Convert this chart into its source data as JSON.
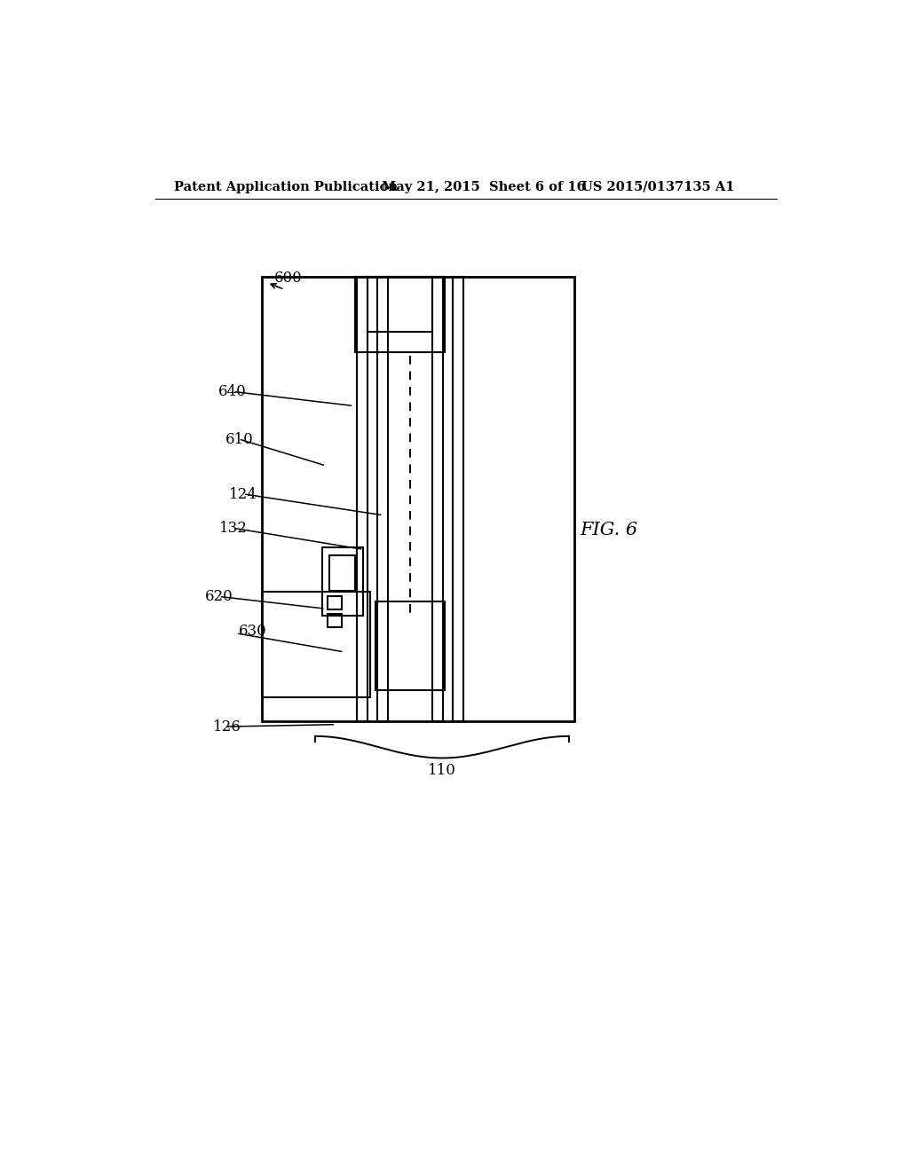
{
  "background_color": "#ffffff",
  "header_left": "Patent Application Publication",
  "header_mid": "May 21, 2015  Sheet 6 of 16",
  "header_right": "US 2015/0137135 A1",
  "fig_label": "FIG. 6",
  "label_600": "600",
  "label_640": "640",
  "label_610": "610",
  "label_124": "124",
  "label_132": "132",
  "label_620": "620",
  "label_630": "630",
  "label_126": "126",
  "label_110": "110"
}
